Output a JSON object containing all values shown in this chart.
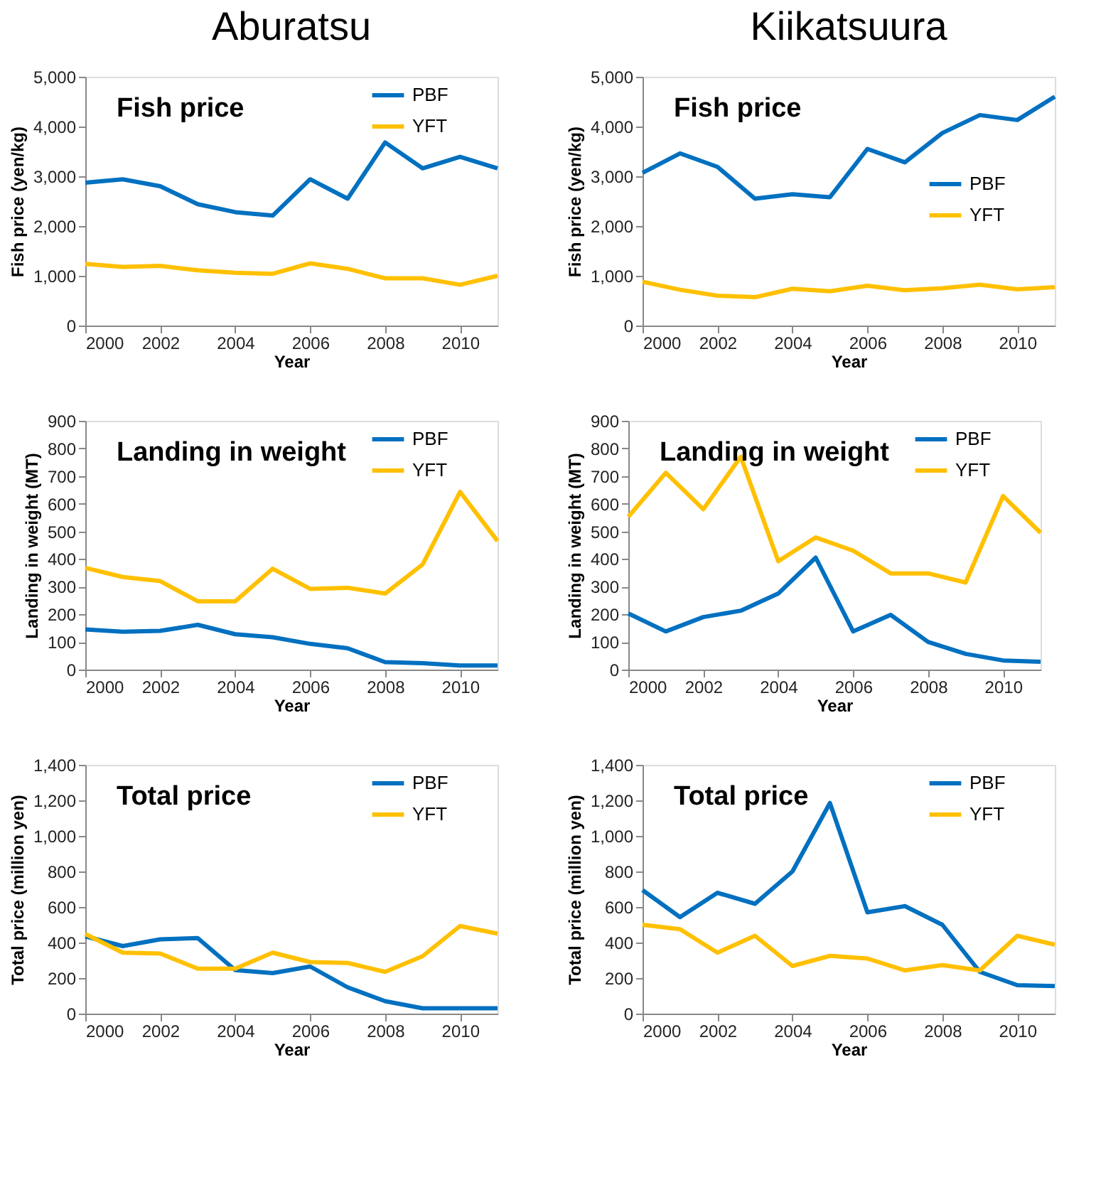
{
  "chart_data": [
    {
      "type": "line",
      "title": "Aburatsu",
      "annotations": [
        "Fish price"
      ],
      "xlabel": "Year",
      "ylabel": "Fish price (yen/kg)",
      "x": [
        2000,
        2001,
        2002,
        2003,
        2004,
        2005,
        2006,
        2007,
        2008,
        2009,
        2010,
        2011
      ],
      "xlim": [
        2000,
        2011
      ],
      "xticks": [
        2000,
        2002,
        2004,
        2006,
        2008,
        2010
      ],
      "ylim": [
        0,
        5000
      ],
      "yticks": [
        0,
        {
          "value": 1000,
          "label": "1,000"
        },
        {
          "value": 2000,
          "label": "2,000"
        },
        {
          "value": 3000,
          "label": "3,000"
        },
        {
          "value": 4000,
          "label": "4,000"
        },
        {
          "value": 5000,
          "label": "5,000"
        }
      ],
      "grid": false,
      "legend": "top right",
      "series": [
        {
          "name": "PBF",
          "color": "#0070c0",
          "values": [
            2870,
            2940,
            2800,
            2440,
            2280,
            2210,
            2940,
            2550,
            3680,
            3160,
            3390,
            3160
          ]
        },
        {
          "name": "YFT",
          "color": "#ffc000",
          "values": [
            1240,
            1180,
            1200,
            1110,
            1060,
            1040,
            1250,
            1140,
            950,
            950,
            820,
            1000
          ]
        }
      ]
    },
    {
      "type": "line",
      "title": "Kiikatsuura",
      "annotations": [
        "Fish price"
      ],
      "xlabel": "Year",
      "ylabel": "Fish price (yen/kg)",
      "x": [
        2000,
        2001,
        2002,
        2003,
        2004,
        2005,
        2006,
        2007,
        2008,
        2009,
        2010,
        2011
      ],
      "xlim": [
        2000,
        2011
      ],
      "xticks": [
        2000,
        2002,
        2004,
        2006,
        2008,
        2010
      ],
      "ylim": [
        0,
        5000
      ],
      "yticks": [
        0,
        {
          "value": 1000,
          "label": "1,000"
        },
        {
          "value": 2000,
          "label": "2,000"
        },
        {
          "value": 3000,
          "label": "3,000"
        },
        {
          "value": 4000,
          "label": "4,000"
        },
        {
          "value": 5000,
          "label": "5,000"
        }
      ],
      "grid": false,
      "legend": "right",
      "series": [
        {
          "name": "PBF",
          "color": "#0070c0",
          "values": [
            3070,
            3460,
            3190,
            2550,
            2640,
            2580,
            3550,
            3280,
            3870,
            4230,
            4130,
            4600
          ]
        },
        {
          "name": "YFT",
          "color": "#ffc000",
          "values": [
            880,
            720,
            600,
            570,
            740,
            690,
            800,
            710,
            750,
            820,
            730,
            770
          ]
        }
      ]
    },
    {
      "type": "line",
      "annotations": [
        "Landing in weight"
      ],
      "xlabel": "Year",
      "ylabel": "Landing in weight (MT)",
      "x": [
        2000,
        2001,
        2002,
        2003,
        2004,
        2005,
        2006,
        2007,
        2008,
        2009,
        2010,
        2011
      ],
      "xlim": [
        2000,
        2011
      ],
      "xticks": [
        2000,
        2002,
        2004,
        2006,
        2008,
        2010
      ],
      "ylim": [
        0,
        900
      ],
      "yticks": [
        0,
        100,
        200,
        300,
        400,
        500,
        600,
        700,
        800,
        900
      ],
      "grid": false,
      "legend": "top right",
      "series": [
        {
          "name": "PBF",
          "color": "#0070c0",
          "values": [
            145,
            137,
            140,
            162,
            128,
            117,
            93,
            77,
            27,
            23,
            15,
            15
          ]
        },
        {
          "name": "YFT",
          "color": "#ffc000",
          "values": [
            368,
            335,
            320,
            247,
            247,
            365,
            292,
            296,
            275,
            380,
            643,
            465
          ]
        }
      ]
    },
    {
      "type": "line",
      "annotations": [
        "Landing in weight"
      ],
      "xlabel": "Year",
      "ylabel": "Landing in weight (MT)",
      "x": [
        2000,
        2001,
        2002,
        2003,
        2004,
        2005,
        2006,
        2007,
        2008,
        2009,
        2010,
        2011
      ],
      "xlim": [
        2000,
        2011
      ],
      "xticks": [
        2000,
        2002,
        2004,
        2006,
        2008,
        2010
      ],
      "ylim": [
        0,
        900
      ],
      "yticks": [
        0,
        100,
        200,
        300,
        400,
        500,
        600,
        700,
        800,
        900
      ],
      "grid": false,
      "legend": "top right",
      "series": [
        {
          "name": "PBF",
          "color": "#0070c0",
          "values": [
            203,
            138,
            190,
            213,
            275,
            405,
            138,
            198,
            100,
            57,
            33,
            28
          ]
        },
        {
          "name": "YFT",
          "color": "#ffc000",
          "values": [
            553,
            712,
            580,
            770,
            392,
            478,
            430,
            348,
            348,
            315,
            628,
            495
          ]
        }
      ]
    },
    {
      "type": "line",
      "annotations": [
        "Total price"
      ],
      "xlabel": "Year",
      "ylabel": "Total price (million yen)",
      "x": [
        2000,
        2001,
        2002,
        2003,
        2004,
        2005,
        2006,
        2007,
        2008,
        2009,
        2010,
        2011
      ],
      "xlim": [
        2000,
        2011
      ],
      "xticks": [
        2000,
        2002,
        2004,
        2006,
        2008,
        2010
      ],
      "ylim": [
        0,
        1400
      ],
      "yticks": [
        0,
        200,
        400,
        600,
        800,
        {
          "value": 1000,
          "label": "1,000"
        },
        {
          "value": 1200,
          "label": "1,200"
        },
        {
          "value": 1400,
          "label": "1,400"
        }
      ],
      "grid": false,
      "legend": "top right",
      "series": [
        {
          "name": "PBF",
          "color": "#0070c0",
          "values": [
            435,
            380,
            418,
            425,
            245,
            228,
            265,
            148,
            70,
            30,
            30,
            30
          ]
        },
        {
          "name": "YFT",
          "color": "#ffc000",
          "values": [
            448,
            343,
            338,
            253,
            253,
            343,
            290,
            285,
            235,
            323,
            493,
            450
          ]
        }
      ]
    },
    {
      "type": "line",
      "annotations": [
        "Total price"
      ],
      "xlabel": "Year",
      "ylabel": "Total price (million yen)",
      "x": [
        2000,
        2001,
        2002,
        2003,
        2004,
        2005,
        2006,
        2007,
        2008,
        2009,
        2010,
        2011
      ],
      "xlim": [
        2000,
        2011
      ],
      "xticks": [
        2000,
        2002,
        2004,
        2006,
        2008,
        2010
      ],
      "ylim": [
        0,
        1400
      ],
      "yticks": [
        0,
        200,
        400,
        600,
        800,
        {
          "value": 1000,
          "label": "1,000"
        },
        {
          "value": 1200,
          "label": "1,200"
        },
        {
          "value": 1400,
          "label": "1,400"
        }
      ],
      "grid": false,
      "legend": "top right",
      "series": [
        {
          "name": "PBF",
          "color": "#0070c0",
          "values": [
            695,
            543,
            680,
            618,
            800,
            1185,
            570,
            605,
            500,
            235,
            160,
            155
          ]
        },
        {
          "name": "YFT",
          "color": "#ffc000",
          "values": [
            500,
            475,
            343,
            438,
            268,
            325,
            310,
            243,
            273,
            243,
            438,
            388
          ]
        }
      ]
    }
  ]
}
